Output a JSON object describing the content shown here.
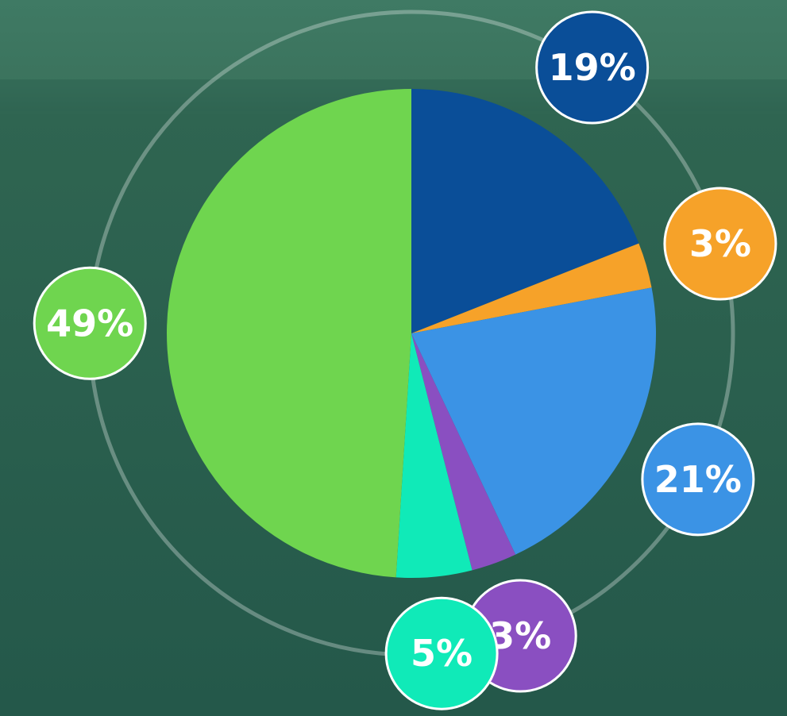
{
  "chart_data": {
    "type": "pie",
    "values": [
      19,
      3,
      21,
      3,
      5,
      49
    ],
    "value_labels": [
      "19%",
      "3%",
      "21%",
      "3%",
      "5%",
      "49%"
    ],
    "colors": [
      "#0a4e98",
      "#f6a229",
      "#3b93e5",
      "#8a4fc1",
      "#10eab8",
      "#6fd54f"
    ]
  }
}
